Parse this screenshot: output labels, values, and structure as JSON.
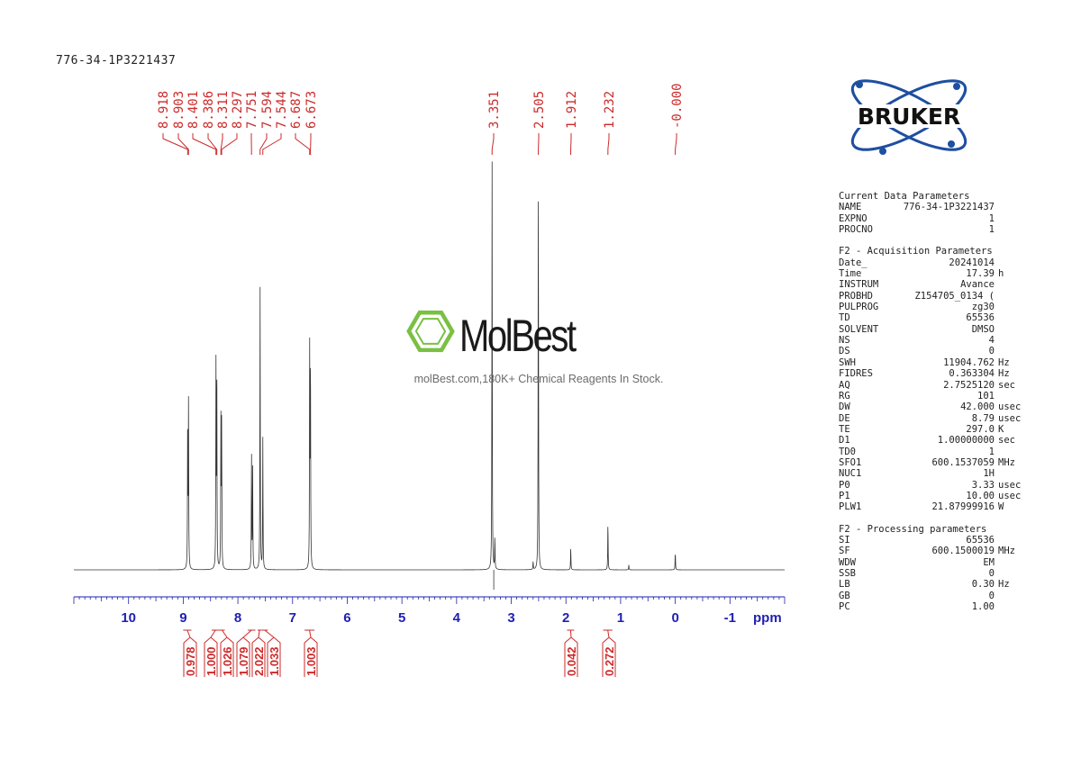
{
  "sample_name": "776-34-1P3221437",
  "logos": {
    "bruker_text": "BRUKER",
    "molbest_text": "MolBest",
    "molbest_tagline": "molBest.com,180K+ Chemical Reagents In Stock."
  },
  "parameters": [
    {
      "header": "Current Data Parameters",
      "rows": [
        {
          "k": "NAME",
          "v": "776-34-1P3221437",
          "u": ""
        },
        {
          "k": "EXPNO",
          "v": "1",
          "u": ""
        },
        {
          "k": "PROCNO",
          "v": "1",
          "u": ""
        }
      ]
    },
    {
      "header": "F2 - Acquisition Parameters",
      "rows": [
        {
          "k": "Date_",
          "v": "20241014",
          "u": ""
        },
        {
          "k": "Time",
          "v": "17.39",
          "u": "h"
        },
        {
          "k": "INSTRUM",
          "v": "Avance",
          "u": ""
        },
        {
          "k": "PROBHD",
          "v": "Z154705_0134 (",
          "u": ""
        },
        {
          "k": "PULPROG",
          "v": "zg30",
          "u": ""
        },
        {
          "k": "TD",
          "v": "65536",
          "u": ""
        },
        {
          "k": "SOLVENT",
          "v": "DMSO",
          "u": ""
        },
        {
          "k": "NS",
          "v": "4",
          "u": ""
        },
        {
          "k": "DS",
          "v": "0",
          "u": ""
        },
        {
          "k": "SWH",
          "v": "11904.762",
          "u": "Hz"
        },
        {
          "k": "FIDRES",
          "v": "0.363304",
          "u": "Hz"
        },
        {
          "k": "AQ",
          "v": "2.7525120",
          "u": "sec"
        },
        {
          "k": "RG",
          "v": "101",
          "u": ""
        },
        {
          "k": "DW",
          "v": "42.000",
          "u": "usec"
        },
        {
          "k": "DE",
          "v": "8.79",
          "u": "usec"
        },
        {
          "k": "TE",
          "v": "297.0",
          "u": "K"
        },
        {
          "k": "D1",
          "v": "1.00000000",
          "u": "sec"
        },
        {
          "k": "TD0",
          "v": "1",
          "u": ""
        },
        {
          "k": "SFO1",
          "v": "600.1537059",
          "u": "MHz"
        },
        {
          "k": "NUC1",
          "v": "1H",
          "u": ""
        },
        {
          "k": "P0",
          "v": "3.33",
          "u": "usec"
        },
        {
          "k": "P1",
          "v": "10.00",
          "u": "usec"
        },
        {
          "k": "PLW1",
          "v": "21.87999916",
          "u": "W"
        }
      ]
    },
    {
      "header": "F2 - Processing parameters",
      "rows": [
        {
          "k": "SI",
          "v": "65536",
          "u": ""
        },
        {
          "k": "SF",
          "v": "600.1500019",
          "u": "MHz"
        },
        {
          "k": "WDW",
          "v": "EM",
          "u": ""
        },
        {
          "k": "SSB",
          "v": "0",
          "u": ""
        },
        {
          "k": "LB",
          "v": "0.30",
          "u": "Hz"
        },
        {
          "k": "GB",
          "v": "0",
          "u": ""
        },
        {
          "k": "PC",
          "v": "1.00",
          "u": ""
        }
      ]
    }
  ],
  "chart_data": {
    "type": "line",
    "xlabel": "ppm",
    "xlim": [
      11.0,
      -2.0
    ],
    "x_ticks": [
      "10",
      "9",
      "8",
      "7",
      "6",
      "5",
      "4",
      "3",
      "2",
      "1",
      "0",
      "-1"
    ],
    "peak_labels": [
      "8.918",
      "8.903",
      "8.401",
      "8.386",
      "8.311",
      "8.297",
      "7.751",
      "7.594",
      "7.544",
      "6.687",
      "6.673",
      "3.351",
      "2.505",
      "1.912",
      "1.232",
      "-0.000"
    ],
    "peaks": [
      {
        "ppm": 8.918,
        "h": 0.39
      },
      {
        "ppm": 8.903,
        "h": 0.4
      },
      {
        "ppm": 8.401,
        "h": 0.49
      },
      {
        "ppm": 8.386,
        "h": 0.51
      },
      {
        "ppm": 8.311,
        "h": 0.37
      },
      {
        "ppm": 8.297,
        "h": 0.36
      },
      {
        "ppm": 7.751,
        "h": 0.29
      },
      {
        "ppm": 7.73,
        "h": 0.25
      },
      {
        "ppm": 7.594,
        "h": 0.7
      },
      {
        "ppm": 7.544,
        "h": 0.32
      },
      {
        "ppm": 6.687,
        "h": 0.53
      },
      {
        "ppm": 6.673,
        "h": 0.54
      },
      {
        "ppm": 3.351,
        "h": 1.0
      },
      {
        "ppm": 3.3,
        "h": 0.08
      },
      {
        "ppm": 2.505,
        "h": 1.0
      },
      {
        "ppm": 2.6,
        "h": 0.02
      },
      {
        "ppm": 1.912,
        "h": 0.055
      },
      {
        "ppm": 1.232,
        "h": 0.12
      },
      {
        "ppm": 0.85,
        "h": 0.012
      },
      {
        "ppm": -0.0,
        "h": 0.045
      }
    ],
    "integrals": [
      {
        "value": "0.978",
        "from": 9.0,
        "to": 8.85
      },
      {
        "value": "1.000",
        "from": 8.48,
        "to": 8.34
      },
      {
        "value": "1.026",
        "from": 8.34,
        "to": 8.24
      },
      {
        "value": "1.079",
        "from": 7.82,
        "to": 7.68
      },
      {
        "value": "2.022",
        "from": 7.64,
        "to": 7.57
      },
      {
        "value": "1.033",
        "from": 7.57,
        "to": 7.45
      },
      {
        "value": "1.003",
        "from": 6.78,
        "to": 6.6
      },
      {
        "value": "0.042",
        "from": 1.98,
        "to": 1.85
      },
      {
        "value": "0.272",
        "from": 1.32,
        "to": 1.15
      }
    ]
  },
  "colors": {
    "spectrum": "#333333",
    "peak_label": "#cc2a2a",
    "axis": "#1f1fb4",
    "green": "#7ac043",
    "bruker_blue": "#1e4fa0"
  }
}
